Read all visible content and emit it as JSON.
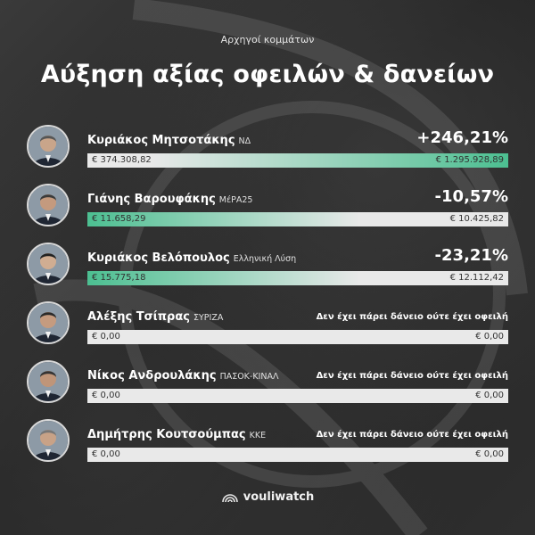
{
  "header": {
    "subtitle": "Αρχηγοί κομμάτων",
    "title": "Αύξηση αξίας οφειλών & δανείων"
  },
  "rows": [
    {
      "name": "Κυριάκος Μητσοτάκης",
      "party": "ΝΔ",
      "change": "+246,21%",
      "note": "",
      "left_value": "€ 374.308,82",
      "right_value": "€ 1.295.928,89",
      "fill_side": "right",
      "fill_fraction": 0.85
    },
    {
      "name": "Γιάνης Βαρουφάκης",
      "party": "ΜέΡΑ25",
      "change": "-10,57%",
      "note": "",
      "left_value": "€ 11.658,29",
      "right_value": "€ 10.425,82",
      "fill_side": "left",
      "fill_fraction": 0.65
    },
    {
      "name": "Κυριάκος Βελόπουλος",
      "party": "Ελληνική Λύση",
      "change": "-23,21%",
      "note": "",
      "left_value": "€ 15.775,18",
      "right_value": "€ 12.112,42",
      "fill_side": "left",
      "fill_fraction": 0.65
    },
    {
      "name": "Αλέξης Τσίπρας",
      "party": "ΣΥΡΙΖΑ",
      "change": "",
      "note": "Δεν έχει πάρει δάνειο ούτε έχει οφειλή",
      "left_value": "€ 0,00",
      "right_value": "€ 0,00",
      "fill_side": "none",
      "fill_fraction": 0
    },
    {
      "name": "Νίκος Ανδρουλάκης",
      "party": "ΠΑΣΟΚ-ΚΙΝΑΛ",
      "change": "",
      "note": "Δεν έχει πάρει δάνειο ούτε έχει οφειλή",
      "left_value": "€ 0,00",
      "right_value": "€ 0,00",
      "fill_side": "none",
      "fill_fraction": 0
    },
    {
      "name": "Δημήτρης Κουτσούμπας",
      "party": "ΚΚΕ",
      "change": "",
      "note": "Δεν έχει πάρει δάνειο ούτε έχει οφειλή",
      "left_value": "€ 0,00",
      "right_value": "€ 0,00",
      "fill_side": "none",
      "fill_fraction": 0
    }
  ],
  "footer": {
    "brand": "vouliwatch"
  },
  "colors": {
    "accent": "#4cbf91",
    "bar_bg": "#e9e9e9",
    "background": "#2b2b2b"
  }
}
